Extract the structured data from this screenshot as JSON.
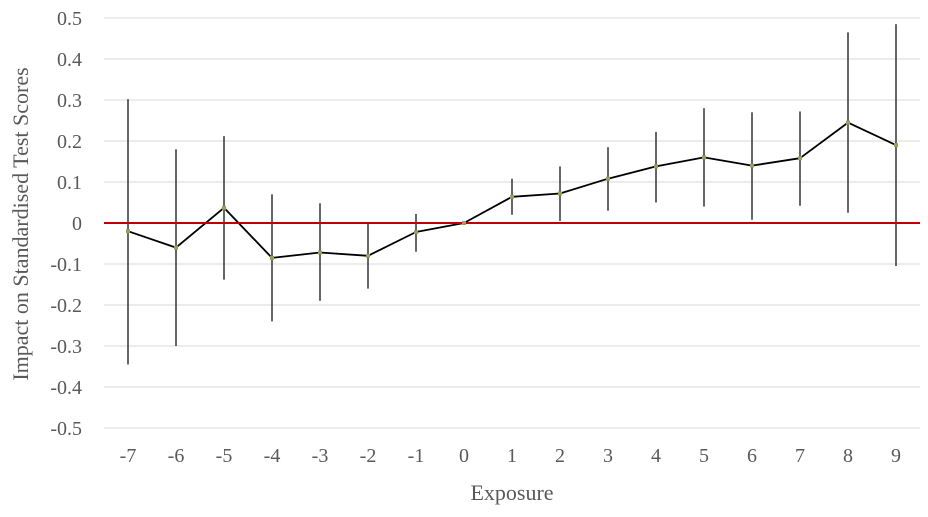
{
  "chart_data": {
    "type": "line",
    "title": "",
    "xlabel": "Exposure",
    "ylabel": "Impact on Standardised Test Scores",
    "x": [
      -7,
      -6,
      -5,
      -4,
      -3,
      -2,
      -1,
      0,
      1,
      2,
      3,
      4,
      5,
      6,
      7,
      8,
      9
    ],
    "x_tick_labels": [
      "-7",
      "-6",
      "-5",
      "-4",
      "-3",
      "-2",
      "-1",
      "0",
      "1",
      "2",
      "3",
      "4",
      "5",
      "6",
      "7",
      "8",
      "9"
    ],
    "y_tick_labels": [
      "0.5",
      "0.4",
      "0.3",
      "0.2",
      "0.1",
      "0",
      "-0.1",
      "-0.2",
      "-0.3",
      "-0.4",
      "-0.5"
    ],
    "ylim": [
      -0.5,
      0.5
    ],
    "yticks": [
      0.5,
      0.4,
      0.3,
      0.2,
      0.1,
      0,
      -0.1,
      -0.2,
      -0.3,
      -0.4,
      -0.5
    ],
    "grid": true,
    "series": [
      {
        "values": [
          -0.02,
          -0.06,
          0.037,
          -0.085,
          -0.072,
          -0.08,
          -0.022,
          0.0,
          0.064,
          0.072,
          0.108,
          0.138,
          0.16,
          0.14,
          0.158,
          0.245,
          0.19
        ],
        "error_low": [
          -0.345,
          -0.3,
          -0.138,
          -0.24,
          -0.19,
          -0.16,
          -0.07,
          0.0,
          0.02,
          0.005,
          0.03,
          0.05,
          0.04,
          0.008,
          0.042,
          0.025,
          -0.105
        ],
        "error_high": [
          0.302,
          0.18,
          0.212,
          0.07,
          0.048,
          -0.002,
          0.022,
          0.0,
          0.108,
          0.138,
          0.185,
          0.222,
          0.28,
          0.27,
          0.272,
          0.465,
          0.485
        ]
      }
    ],
    "reference_line": {
      "y": 0
    },
    "colors": {
      "line": "#000000",
      "marker": "#8ea65a",
      "error_bar": "#404040",
      "reference": "#c00000",
      "grid": "#d9d9d9",
      "text": "#595959"
    }
  }
}
